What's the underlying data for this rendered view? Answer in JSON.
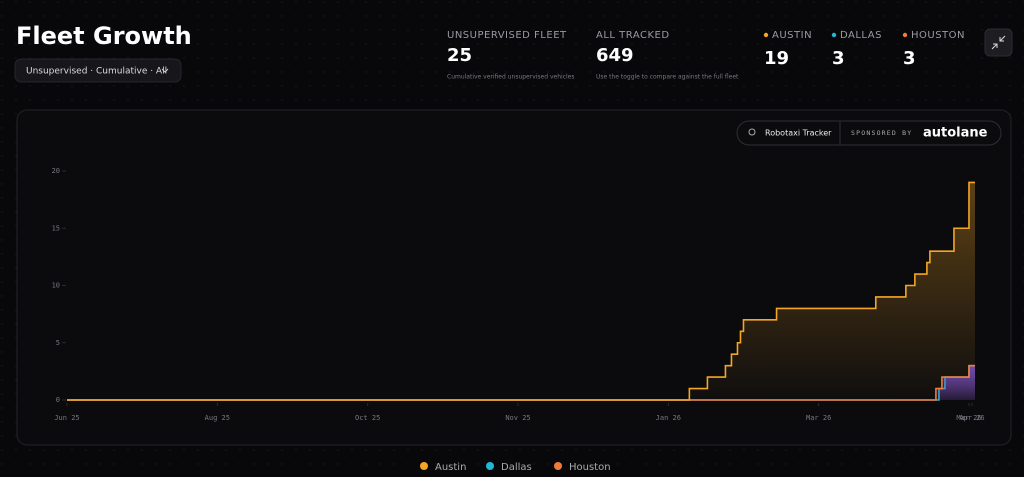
{
  "header": {
    "title": "Fleet Growth",
    "filter": "Unsupervised · Cumulative · All"
  },
  "stats": [
    {
      "label": "UNSUPERVISED FLEET",
      "value": 25,
      "caption": "Cumulative verified unsupervised vehicles"
    },
    {
      "label": "ALL TRACKED",
      "value": 649,
      "caption": "Use the toggle to compare against the full fleet"
    }
  ],
  "cities": [
    {
      "label": "AUSTIN",
      "value": 19,
      "color": "#f5a623"
    },
    {
      "label": "DALLAS",
      "value": 3,
      "color": "#22b8d4"
    },
    {
      "label": "HOUSTON",
      "value": 3,
      "color": "#f07a3a"
    }
  ],
  "badge": {
    "tracker": "Robotaxi Tracker",
    "sponsored": "SPONSORED BY",
    "brand": "autolane"
  },
  "chart_data": {
    "type": "step",
    "xlim": [
      0,
      302
    ],
    "ylim": [
      0,
      20
    ],
    "yticks": [
      0,
      5,
      10,
      15,
      20
    ],
    "xticks": [
      {
        "value": 0,
        "label": "Jun 25"
      },
      {
        "value": 50,
        "label": "Aug 25"
      },
      {
        "value": 100,
        "label": "Oct 25"
      },
      {
        "value": 150,
        "label": "Nov 25"
      },
      {
        "value": 200,
        "label": "Jan 26"
      },
      {
        "value": 250,
        "label": "Mar 26"
      },
      {
        "value": 300,
        "label": "Mar 26"
      },
      {
        "value": 301,
        "label": "Apr 26"
      }
    ],
    "series": [
      {
        "name": "Austin",
        "color": "#f5a623",
        "fill": "#f5a623",
        "x": [
          0,
          207,
          213,
          219,
          221,
          223,
          224,
          225,
          236,
          269,
          279,
          282,
          286,
          287,
          295,
          300
        ],
        "values": [
          0,
          1,
          2,
          3,
          4,
          5,
          6,
          7,
          8,
          9,
          10,
          11,
          12,
          13,
          15,
          19
        ]
      },
      {
        "name": "Dallas",
        "color": "#22b8d4",
        "fill": "#7b4fd6",
        "x": [
          0,
          290,
          292,
          300
        ],
        "values": [
          0,
          1,
          2,
          3
        ]
      },
      {
        "name": "Houston",
        "color": "#f07a3a",
        "fill": "#7b4fd6",
        "x": [
          0,
          289,
          291,
          300
        ],
        "values": [
          0,
          1,
          2,
          3
        ]
      }
    ]
  }
}
